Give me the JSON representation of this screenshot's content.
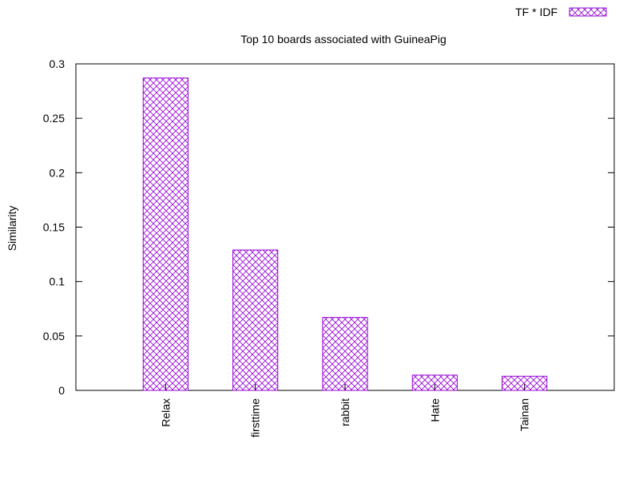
{
  "chart_data": {
    "type": "bar",
    "title": "Top 10 boards associated with GuineaPig",
    "xlabel": "",
    "ylabel": "Similarity",
    "categories": [
      "Relax",
      "firsttime",
      "rabbit",
      "Hate",
      "Tainan"
    ],
    "series": [
      {
        "name": "TF * IDF",
        "values": [
          0.287,
          0.129,
          0.067,
          0.014,
          0.013
        ]
      }
    ],
    "ylim": [
      0,
      0.3
    ],
    "yticks": [
      "0",
      "0.05",
      "0.1",
      "0.15",
      "0.2",
      "0.25",
      "0.3"
    ],
    "grid": false,
    "legend_position": "top-right",
    "bar_fill": "crosshatch",
    "colors": {
      "bar": "#9400d3",
      "axis": "#000000"
    }
  }
}
